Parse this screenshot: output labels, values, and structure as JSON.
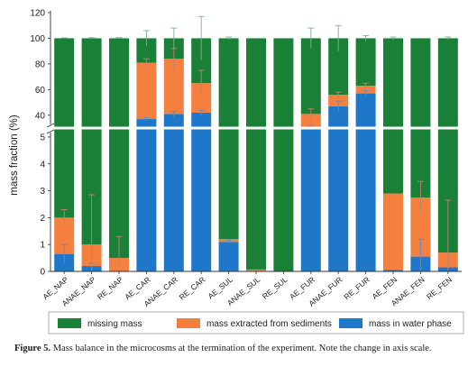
{
  "chart_data": {
    "type": "bar",
    "stacked": true,
    "broken_axis": true,
    "ylabel": "mass fraction (%)",
    "categories": [
      "AE_NAP",
      "ANAE_NAP",
      "RE_NAP",
      "AE_CAR",
      "ANAE_CAR",
      "RE_CAR",
      "AE_SUL",
      "ANAE_SUL",
      "RE_SUL",
      "AE_FUR",
      "ANAE_FUR",
      "RE_FUR",
      "AE_FEN",
      "ANAE_FEN",
      "RE_FEN"
    ],
    "upper_ylim": [
      30,
      120
    ],
    "upper_yticks": [
      40,
      60,
      80,
      100,
      120
    ],
    "lower_ylim": [
      0,
      5.3
    ],
    "lower_yticks": [
      0,
      1,
      2,
      3,
      4,
      5
    ],
    "series": [
      {
        "name": "mass in water phase",
        "color": "#1f77c9",
        "values": [
          0.65,
          0.2,
          0.0,
          37,
          41,
          42,
          1.1,
          0.02,
          0.0,
          29,
          47,
          57,
          0.05,
          0.55,
          0.15
        ],
        "errors": [
          0.35,
          0.1,
          0,
          1,
          2,
          2,
          0.05,
          0,
          0,
          3,
          4,
          2,
          0,
          0.65,
          0
        ]
      },
      {
        "name": "mass extracted from sediments",
        "color": "#f47f3f",
        "values": [
          1.35,
          0.8,
          0.5,
          44,
          43,
          23,
          0.1,
          0.05,
          0.0,
          12,
          9,
          6,
          2.85,
          2.2,
          0.55
        ],
        "errors": [
          0.3,
          1.85,
          0.8,
          3,
          8,
          10,
          0,
          0,
          0,
          4,
          2,
          2,
          0,
          0.6,
          1.95
        ]
      },
      {
        "name": "missing mass",
        "color": "#1a7f37",
        "values": [
          98.0,
          99.0,
          99.5,
          19,
          16,
          35,
          98.8,
          99.93,
          100.0,
          59,
          44,
          37,
          97.1,
          97.25,
          99.3
        ],
        "errors": [
          0.3,
          0.5,
          0.5,
          6,
          8,
          17,
          1,
          0,
          0,
          8,
          10,
          2,
          1,
          0,
          1
        ]
      }
    ],
    "legend_position": "bottom",
    "grid": false
  },
  "caption": {
    "label": "Figure 5.",
    "text": "Mass balance in the microcosms at the termination of the experiment. Note the change in axis scale."
  }
}
